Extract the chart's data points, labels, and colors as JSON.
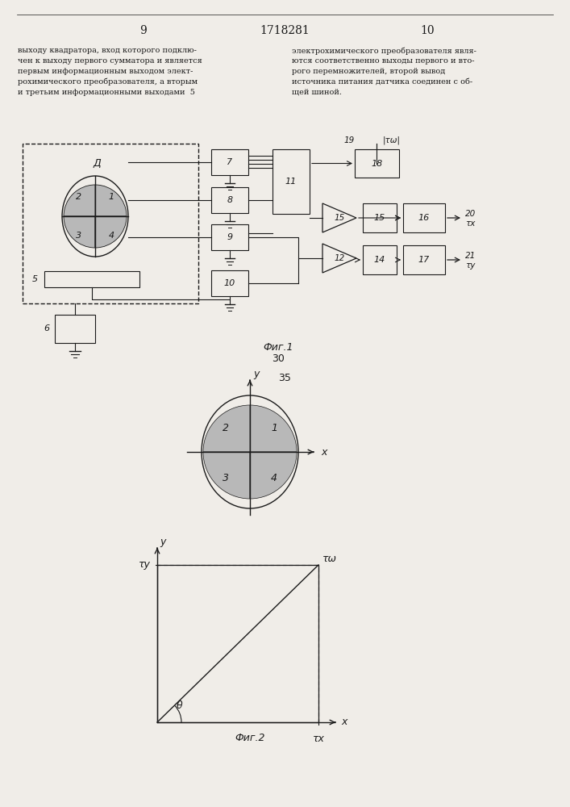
{
  "bg_color": "#f0ede8",
  "text_color": "#1a1a1a",
  "page_num_left": "9",
  "page_num_center": "1718281",
  "page_num_right": "10",
  "fig1_label": "Фиг.1",
  "fig2_label": "Фиг.2",
  "label_30": "30",
  "label_35": "35"
}
